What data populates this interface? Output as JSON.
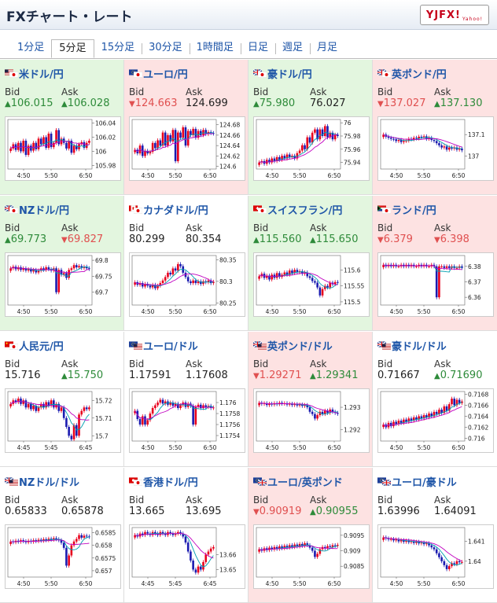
{
  "header": {
    "title": "FXチャート・レート",
    "logo_text": "YJFX!",
    "logo_sub": "Yahoo!"
  },
  "tabs": [
    {
      "label": "1分足"
    },
    {
      "label": "5分足",
      "active": true
    },
    {
      "label": "15分足"
    },
    {
      "label": "30分足"
    },
    {
      "label": "1時間足"
    },
    {
      "label": "日足"
    },
    {
      "label": "週足"
    },
    {
      "label": "月足"
    }
  ],
  "labels": {
    "bid": "Bid",
    "ask": "Ask"
  },
  "colors": {
    "up_bg": "#e3f6df",
    "down_bg": "#fde2e2",
    "up": "#2e8b3a",
    "down": "#e05050",
    "candle_up": "#e8001c",
    "candle_down": "#1b1bb0",
    "ma1": "#c000c0",
    "ma2": "#00a0b0"
  },
  "panels": [
    {
      "pair": "米ドル/円",
      "flags": [
        "us",
        "jp"
      ],
      "trend": "up",
      "bid": "106.015",
      "bid_dir": "up",
      "ask": "106.028",
      "ask_dir": "up",
      "chart_data": {
        "type": "candlestick",
        "x_ticks": [
          "4:50",
          "5:50",
          "6:50"
        ],
        "y_ticks": [
          "106.04",
          "106.02",
          "106",
          "105.98"
        ],
        "ylim": [
          105.975,
          106.045
        ],
        "close": [
          106.004,
          106.01,
          106.002,
          106.012,
          106.0,
          106.015,
          105.995,
          106.008,
          106.001,
          106.012,
          106.003,
          106.018,
          106.01,
          106.02,
          106.005,
          106.025,
          106.006,
          106.012,
          106.03,
          106.01,
          106.018,
          106.012,
          106.004,
          106.015,
          105.998,
          106.008,
          106.003,
          106.01,
          106.013,
          106.005,
          106.012,
          106.015
        ]
      }
    },
    {
      "pair": "ユーロ/円",
      "flags": [
        "eu",
        "jp"
      ],
      "trend": "down",
      "bid": "124.663",
      "bid_dir": "down",
      "ask": "124.699",
      "ask_dir": "none",
      "chart_data": {
        "type": "candlestick",
        "x_ticks": [
          "4:50",
          "5:50",
          "6:50"
        ],
        "y_ticks": [
          "124.68",
          "124.66",
          "124.64",
          "124.62",
          "124.6"
        ],
        "ylim": [
          124.595,
          124.69
        ],
        "close": [
          124.632,
          124.625,
          124.64,
          124.62,
          124.63,
          124.625,
          124.628,
          124.645,
          124.635,
          124.65,
          124.64,
          124.665,
          124.64,
          124.66,
          124.648,
          124.67,
          124.61,
          124.665,
          124.655,
          124.675,
          124.64,
          124.668,
          124.66,
          124.672,
          124.655,
          124.668,
          124.66,
          124.67,
          124.662,
          124.666,
          124.664,
          124.663
        ]
      }
    },
    {
      "pair": "豪ドル/円",
      "flags": [
        "au",
        "jp"
      ],
      "trend": "up",
      "bid": "75.980",
      "bid_dir": "up",
      "ask": "76.027",
      "ask_dir": "none",
      "chart_data": {
        "type": "candlestick",
        "x_ticks": [
          "4:50",
          "5:50",
          "6:50"
        ],
        "y_ticks": [
          "76",
          "75.98",
          "75.96",
          "75.94"
        ],
        "ylim": [
          75.93,
          76.005
        ],
        "close": [
          75.94,
          75.942,
          75.938,
          75.944,
          75.94,
          75.946,
          75.942,
          75.948,
          75.944,
          75.95,
          75.946,
          75.952,
          75.948,
          75.95,
          75.946,
          75.954,
          75.958,
          75.966,
          75.96,
          75.978,
          75.97,
          75.985,
          75.99,
          75.975,
          75.99,
          75.98,
          75.995,
          75.978,
          75.985,
          75.975,
          75.982,
          75.98
        ]
      }
    },
    {
      "pair": "英ポンド/円",
      "flags": [
        "gb",
        "jp"
      ],
      "trend": "down",
      "bid": "137.027",
      "bid_dir": "down",
      "ask": "137.130",
      "ask_dir": "up",
      "chart_data": {
        "type": "candlestick",
        "x_ticks": [
          "4:50",
          "5:50",
          "6:50"
        ],
        "y_ticks": [
          "137.1",
          "137"
        ],
        "ylim": [
          136.94,
          137.17
        ],
        "close": [
          137.1,
          137.09,
          137.085,
          137.08,
          137.078,
          137.07,
          137.075,
          137.065,
          137.07,
          137.072,
          137.08,
          137.078,
          137.085,
          137.082,
          137.09,
          137.088,
          137.092,
          137.08,
          137.085,
          137.075,
          137.07,
          137.06,
          137.05,
          137.04,
          137.045,
          137.03,
          137.04,
          137.035,
          137.04,
          137.03,
          137.035,
          137.027
        ]
      }
    },
    {
      "pair": "NZドル/円",
      "flags": [
        "nz",
        "jp"
      ],
      "trend": "up",
      "bid": "69.773",
      "bid_dir": "up",
      "ask": "69.827",
      "ask_dir": "down",
      "chart_data": {
        "type": "candlestick",
        "x_ticks": [
          "4:50",
          "5:50",
          "6:50"
        ],
        "y_ticks": [
          "69.8",
          "69.75",
          "69.7"
        ],
        "ylim": [
          69.66,
          69.815
        ],
        "close": [
          69.775,
          69.78,
          69.772,
          69.778,
          69.77,
          69.775,
          69.768,
          69.772,
          69.765,
          69.77,
          69.762,
          69.768,
          69.775,
          69.77,
          69.778,
          69.772,
          69.768,
          69.775,
          69.7,
          69.77,
          69.755,
          69.76,
          69.745,
          69.77,
          69.775,
          69.785,
          69.778,
          69.782,
          69.776,
          69.78,
          69.775,
          69.773
        ]
      }
    },
    {
      "pair": "カナダドル/円",
      "flags": [
        "ca",
        "jp"
      ],
      "trend": "none",
      "bid": "80.299",
      "bid_dir": "none",
      "ask": "80.354",
      "ask_dir": "none",
      "chart_data": {
        "type": "candlestick",
        "x_ticks": [
          "4:50",
          "5:50",
          "6:50"
        ],
        "y_ticks": [
          "80.35",
          "80.3",
          "80.25"
        ],
        "ylim": [
          80.245,
          80.36
        ],
        "close": [
          80.298,
          80.292,
          80.296,
          80.288,
          80.294,
          80.29,
          80.286,
          80.292,
          80.284,
          80.29,
          80.296,
          80.302,
          80.31,
          80.32,
          80.316,
          80.33,
          80.325,
          80.34,
          80.335,
          80.32,
          80.31,
          80.3,
          80.296,
          80.302,
          80.296,
          80.3,
          80.294,
          80.3,
          80.298,
          80.302,
          80.296,
          80.299
        ]
      }
    },
    {
      "pair": "スイスフラン/円",
      "flags": [
        "ch",
        "jp"
      ],
      "trend": "up",
      "bid": "115.560",
      "bid_dir": "up",
      "ask": "115.650",
      "ask_dir": "up",
      "chart_data": {
        "type": "candlestick",
        "x_ticks": [
          "4:50",
          "5:50",
          "6:50"
        ],
        "y_ticks": [
          "115.6",
          "115.55",
          "115.5"
        ],
        "ylim": [
          115.49,
          115.645
        ],
        "close": [
          115.58,
          115.588,
          115.575,
          115.582,
          115.57,
          115.585,
          115.575,
          115.59,
          115.578,
          115.585,
          115.592,
          115.585,
          115.598,
          115.59,
          115.6,
          115.592,
          115.596,
          115.588,
          115.592,
          115.58,
          115.575,
          115.565,
          115.56,
          115.545,
          115.52,
          115.54,
          115.55,
          115.545,
          115.56,
          115.555,
          115.562,
          115.56
        ]
      }
    },
    {
      "pair": "ランド/円",
      "flags": [
        "za",
        "jp"
      ],
      "trend": "down",
      "bid": "6.379",
      "bid_dir": "down",
      "ask": "6.398",
      "ask_dir": "down",
      "chart_data": {
        "type": "candlestick",
        "x_ticks": [
          "4:50",
          "5:50",
          "6:50"
        ],
        "y_ticks": [
          "6.38",
          "6.37",
          "6.36"
        ],
        "ylim": [
          6.355,
          6.387
        ],
        "close": [
          6.381,
          6.38,
          6.381,
          6.38,
          6.381,
          6.38,
          6.38,
          6.381,
          6.38,
          6.381,
          6.38,
          6.381,
          6.38,
          6.38,
          6.381,
          6.38,
          6.381,
          6.38,
          6.38,
          6.381,
          6.38,
          6.36,
          6.38,
          6.38,
          6.379,
          6.38,
          6.379,
          6.38,
          6.379,
          6.379,
          6.38,
          6.379
        ]
      }
    },
    {
      "pair": "人民元/円",
      "flags": [
        "cn",
        "jp"
      ],
      "trend": "none",
      "bid": "15.716",
      "bid_dir": "none",
      "ask": "15.750",
      "ask_dir": "up",
      "chart_data": {
        "type": "candlestick",
        "x_ticks": [
          "4:45",
          "5:45",
          "6:45"
        ],
        "y_ticks": [
          "15.72",
          "15.71",
          "15.7"
        ],
        "ylim": [
          15.697,
          15.725
        ],
        "close": [
          15.718,
          15.72,
          15.719,
          15.721,
          15.718,
          15.72,
          15.716,
          15.718,
          15.715,
          15.717,
          15.714,
          15.716,
          15.718,
          15.716,
          15.719,
          15.717,
          15.72,
          15.716,
          15.718,
          15.714,
          15.716,
          15.71,
          15.705,
          15.7,
          15.698,
          15.706,
          15.7,
          15.712,
          15.714,
          15.716,
          15.715,
          15.716
        ]
      }
    },
    {
      "pair": "ユーロ/ドル",
      "flags": [
        "eu",
        "us"
      ],
      "trend": "none",
      "bid": "1.17591",
      "bid_dir": "none",
      "ask": "1.17608",
      "ask_dir": "none",
      "chart_data": {
        "type": "candlestick",
        "x_ticks": [
          "4:50",
          "5:50",
          "6:50"
        ],
        "y_ticks": [
          "1.176",
          "1.1758",
          "1.1756",
          "1.1754"
        ],
        "ylim": [
          1.1753,
          1.1762
        ],
        "close": [
          1.17585,
          1.1757,
          1.1756,
          1.17575,
          1.1756,
          1.17568,
          1.1758,
          1.1759,
          1.17595,
          1.176,
          1.17605,
          1.17598,
          1.17602,
          1.17596,
          1.176,
          1.17594,
          1.17598,
          1.1759,
          1.17595,
          1.176,
          1.17592,
          1.17598,
          1.17594,
          1.1756,
          1.17592,
          1.17596,
          1.1759,
          1.17595,
          1.17592,
          1.17594,
          1.1759,
          1.17591
        ]
      }
    },
    {
      "pair": "英ポンド/ドル",
      "flags": [
        "gb",
        "us"
      ],
      "trend": "down",
      "bid": "1.29271",
      "bid_dir": "down",
      "ask": "1.29341",
      "ask_dir": "up",
      "chart_data": {
        "type": "candlestick",
        "x_ticks": [
          "4:50",
          "5:50",
          "6:50"
        ],
        "y_ticks": [
          "1.293",
          "1.292"
        ],
        "ylim": [
          1.2915,
          1.2937
        ],
        "close": [
          1.2932,
          1.29315,
          1.29318,
          1.2931,
          1.29316,
          1.29312,
          1.29318,
          1.29314,
          1.2932,
          1.29316,
          1.29318,
          1.29312,
          1.29316,
          1.2931,
          1.29314,
          1.29308,
          1.29312,
          1.29306,
          1.2931,
          1.293,
          1.2928,
          1.2927,
          1.2925,
          1.29265,
          1.2928,
          1.2927,
          1.29285,
          1.29275,
          1.2929,
          1.2928,
          1.29275,
          1.29271
        ]
      }
    },
    {
      "pair": "豪ドル/ドル",
      "flags": [
        "au",
        "us"
      ],
      "trend": "none",
      "bid": "0.71667",
      "bid_dir": "none",
      "ask": "0.71690",
      "ask_dir": "up",
      "chart_data": {
        "type": "candlestick",
        "x_ticks": [
          "4:50",
          "5:50",
          "6:50"
        ],
        "y_ticks": [
          "0.7168",
          "0.7166",
          "0.7164",
          "0.7162",
          "0.716"
        ],
        "ylim": [
          0.71595,
          0.71685
        ],
        "close": [
          0.71625,
          0.7162,
          0.71628,
          0.71622,
          0.7163,
          0.71626,
          0.71632,
          0.71628,
          0.71634,
          0.7163,
          0.71636,
          0.71632,
          0.71638,
          0.71634,
          0.7164,
          0.71636,
          0.71642,
          0.71638,
          0.71645,
          0.7164,
          0.71648,
          0.71644,
          0.71652,
          0.71646,
          0.71658,
          0.7165,
          0.71662,
          0.71672,
          0.7166,
          0.7167,
          0.71664,
          0.71667
        ]
      }
    },
    {
      "pair": "NZドル/ドル",
      "flags": [
        "nz",
        "us"
      ],
      "trend": "none",
      "bid": "0.65833",
      "bid_dir": "none",
      "ask": "0.65878",
      "ask_dir": "none",
      "chart_data": {
        "type": "candlestick",
        "x_ticks": [
          "4:50",
          "5:50",
          "6:50"
        ],
        "y_ticks": [
          "0.6585",
          "0.658",
          "0.6575",
          "0.657"
        ],
        "ylim": [
          0.65675,
          0.6587
        ],
        "close": [
          0.65815,
          0.65812,
          0.65818,
          0.65814,
          0.6582,
          0.65816,
          0.65812,
          0.65818,
          0.65814,
          0.6582,
          0.65816,
          0.65822,
          0.65818,
          0.65824,
          0.6582,
          0.65826,
          0.65822,
          0.65828,
          0.65824,
          0.6582,
          0.6581,
          0.6579,
          0.6572,
          0.6576,
          0.658,
          0.65815,
          0.65825,
          0.6584,
          0.6583,
          0.65838,
          0.65835,
          0.65833
        ]
      }
    },
    {
      "pair": "香港ドル/円",
      "flags": [
        "hk",
        "jp"
      ],
      "trend": "none",
      "bid": "13.665",
      "bid_dir": "none",
      "ask": "13.695",
      "ask_dir": "none",
      "chart_data": {
        "type": "candlestick",
        "x_ticks": [
          "4:45",
          "5:45",
          "6:45"
        ],
        "y_ticks": [
          "13.66",
          "13.65"
        ],
        "ylim": [
          13.645,
          13.678
        ],
        "close": [
          13.673,
          13.672,
          13.674,
          13.673,
          13.675,
          13.674,
          13.673,
          13.675,
          13.674,
          13.673,
          13.675,
          13.674,
          13.673,
          13.675,
          13.674,
          13.673,
          13.674,
          13.675,
          13.674,
          13.672,
          13.668,
          13.662,
          13.656,
          13.65,
          13.648,
          13.652,
          13.65,
          13.655,
          13.66,
          13.662,
          13.664,
          13.665
        ]
      }
    },
    {
      "pair": "ユーロ/英ポンド",
      "flags": [
        "eu",
        "gb"
      ],
      "trend": "down",
      "bid": "0.90919",
      "bid_dir": "down",
      "ask": "0.90955",
      "ask_dir": "up",
      "chart_data": {
        "type": "candlestick",
        "x_ticks": [
          "4:50",
          "5:50",
          "6:50"
        ],
        "y_ticks": [
          "0.9095",
          "0.909",
          "0.9085"
        ],
        "ylim": [
          0.90815,
          0.90975
        ],
        "close": [
          0.90905,
          0.909,
          0.90908,
          0.90902,
          0.9091,
          0.90904,
          0.90912,
          0.90906,
          0.90914,
          0.90908,
          0.90916,
          0.9091,
          0.90918,
          0.90912,
          0.9092,
          0.90914,
          0.90922,
          0.90916,
          0.90924,
          0.90918,
          0.9091,
          0.909,
          0.9088,
          0.9089,
          0.90905,
          0.90912,
          0.90908,
          0.90915,
          0.90912,
          0.90918,
          0.90916,
          0.90919
        ]
      }
    },
    {
      "pair": "ユーロ/豪ドル",
      "flags": [
        "eu",
        "au"
      ],
      "trend": "none",
      "bid": "1.63996",
      "bid_dir": "none",
      "ask": "1.64091",
      "ask_dir": "none",
      "chart_data": {
        "type": "candlestick",
        "x_ticks": [
          "4:50",
          "5:50",
          "6:50"
        ],
        "y_ticks": [
          "1.641",
          "1.64"
        ],
        "ylim": [
          1.6392,
          1.6417
        ],
        "close": [
          1.6412,
          1.64115,
          1.6411,
          1.64112,
          1.64105,
          1.6411,
          1.641,
          1.64106,
          1.64098,
          1.64104,
          1.64096,
          1.641,
          1.64092,
          1.64098,
          1.6409,
          1.64094,
          1.64086,
          1.6409,
          1.6408,
          1.6407,
          1.6406,
          1.6404,
          1.6402,
          1.64,
          1.6398,
          1.6396,
          1.63975,
          1.6399,
          1.63985,
          1.64,
          1.63995,
          1.63996
        ]
      }
    }
  ]
}
